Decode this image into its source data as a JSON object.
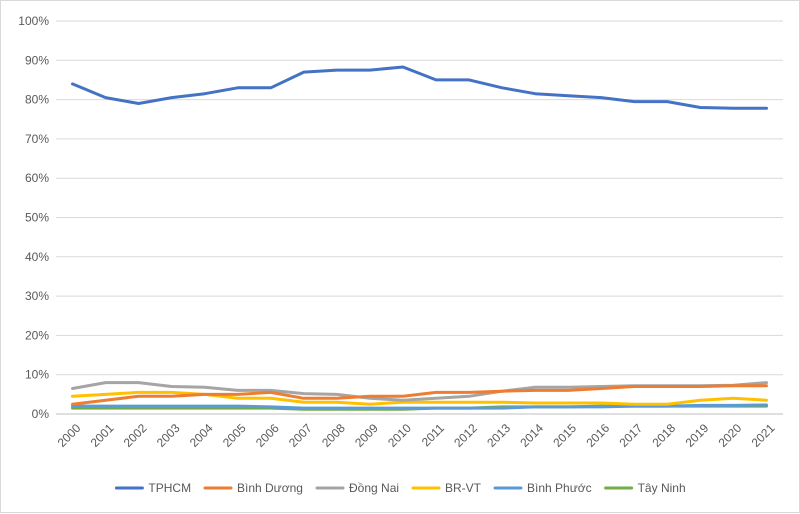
{
  "chart_data": {
    "type": "line",
    "title": "",
    "xlabel": "",
    "ylabel": "",
    "ylim": [
      0,
      100
    ],
    "y_ticks": [
      "0%",
      "10%",
      "20%",
      "30%",
      "40%",
      "50%",
      "60%",
      "70%",
      "80%",
      "90%",
      "100%"
    ],
    "grid": "horizontal",
    "legend": "bottom",
    "categories": [
      "2000",
      "2001",
      "2002",
      "2003",
      "2004",
      "2005",
      "2006",
      "2007",
      "2008",
      "2009",
      "2010",
      "2011",
      "2012",
      "2013",
      "2014",
      "2015",
      "2016",
      "2017",
      "2018",
      "2019",
      "2020",
      "2021"
    ],
    "series": [
      {
        "name": "TPHCM",
        "color": "#4472c4",
        "values": [
          84,
          80.5,
          79,
          80.5,
          81.5,
          83,
          83,
          87,
          87.5,
          87.5,
          88.3,
          85,
          85,
          83,
          81.5,
          81,
          80.5,
          79.5,
          79.5,
          78,
          77.8,
          77.8
        ]
      },
      {
        "name": "Bình Dương",
        "color": "#ed7d31",
        "values": [
          2.5,
          3.5,
          4.5,
          4.5,
          5,
          5,
          5.5,
          4,
          4,
          4.5,
          4.5,
          5.5,
          5.5,
          5.8,
          6,
          6,
          6.5,
          7,
          7,
          7,
          7.2,
          7.2
        ]
      },
      {
        "name": "Đồng Nai",
        "color": "#a5a5a5",
        "values": [
          6.5,
          8,
          8,
          7,
          6.8,
          6,
          6,
          5.2,
          5,
          4,
          3.5,
          4,
          4.5,
          5.8,
          6.8,
          6.8,
          7,
          7.2,
          7.2,
          7.2,
          7.3,
          8
        ]
      },
      {
        "name": "BR-VT",
        "color": "#ffc000",
        "values": [
          4.5,
          5,
          5.5,
          5.5,
          5,
          4,
          4,
          3,
          3,
          2.5,
          3,
          3,
          3,
          3,
          2.8,
          2.8,
          2.8,
          2.5,
          2.5,
          3.5,
          4,
          3.5
        ]
      },
      {
        "name": "Bình Phước",
        "color": "#5b9bd5",
        "values": [
          2,
          2,
          2,
          2,
          2,
          2,
          1.8,
          1.5,
          1.5,
          1.5,
          1.5,
          1.5,
          1.5,
          1.5,
          1.8,
          1.8,
          1.8,
          2,
          2,
          2.2,
          2.2,
          2.3
        ]
      },
      {
        "name": "Tây Ninh",
        "color": "#70ad47",
        "values": [
          1.5,
          1.5,
          1.5,
          1.5,
          1.5,
          1.5,
          1.5,
          1.2,
          1.2,
          1.2,
          1.2,
          1.5,
          1.5,
          1.8,
          1.8,
          1.8,
          2,
          2,
          2,
          2,
          2,
          2
        ]
      }
    ]
  }
}
